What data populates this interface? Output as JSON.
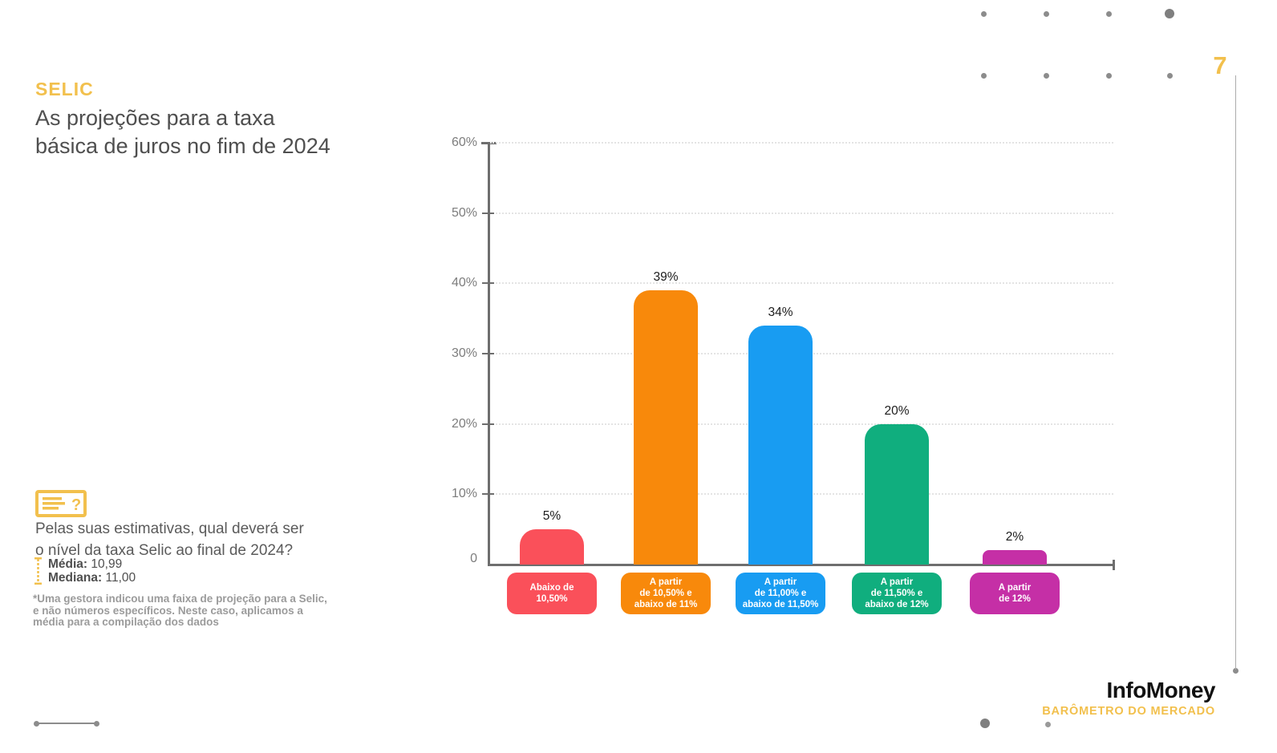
{
  "page": {
    "section_label": "SELIC",
    "title_lines": [
      "As projeções para a taxa",
      "básica de juros no fim de 2024"
    ],
    "page_number": "7"
  },
  "question": {
    "lines": [
      "Pelas suas estimativas, qual deverá ser",
      "o nível da taxa Selic ao final de 2024?"
    ],
    "media_label": "Média:",
    "media_value": "10,99",
    "mediana_label": "Mediana:",
    "mediana_value": "11,00",
    "footnote_lines": [
      "*Uma gestora indicou uma faixa de projeção para a Selic,",
      "e não números específicos. Neste caso, aplicamos a",
      "média para a compilação dos dados"
    ]
  },
  "footer": {
    "brand": "InfoMoney",
    "subtitle": "BARÔMETRO DO MERCADO"
  },
  "colors": {
    "accent_yellow": "#F2C04D",
    "title_gray": "#4F4F4F",
    "axis_gray": "#6E6E6E",
    "gridline_gray": "#E4E4E4"
  },
  "chart_data": {
    "type": "bar",
    "title": "As projeções para a taxa básica de juros no fim de 2024",
    "categories": [
      [
        "Abaixo de",
        "10,50%"
      ],
      [
        "A partir",
        "de 10,50% e",
        "abaixo de 11%"
      ],
      [
        "A partir",
        "de 11,00% e",
        "abaixo de 11,50%"
      ],
      [
        "A partir",
        "de 11,50% e",
        "abaixo de 12%"
      ],
      [
        "A partir",
        "de 12%"
      ]
    ],
    "values": [
      5,
      39,
      34,
      20,
      2
    ],
    "value_labels": [
      "5%",
      "39%",
      "34%",
      "20%",
      "2%"
    ],
    "bar_colors": [
      "#FA505A",
      "#F8890B",
      "#189CF2",
      "#10AE7E",
      "#C52FA6"
    ],
    "xlabel": "",
    "ylabel": "",
    "ylim": [
      0,
      60
    ],
    "yticks": [
      {
        "value": 0,
        "label": "0"
      },
      {
        "value": 10,
        "label": "10%"
      },
      {
        "value": 20,
        "label": "20%"
      },
      {
        "value": 30,
        "label": "30%"
      },
      {
        "value": 40,
        "label": "40%"
      },
      {
        "value": 50,
        "label": "50%"
      },
      {
        "value": 60,
        "label": "60%"
      }
    ],
    "grid": "horizontal-dotted",
    "legend": "none"
  }
}
